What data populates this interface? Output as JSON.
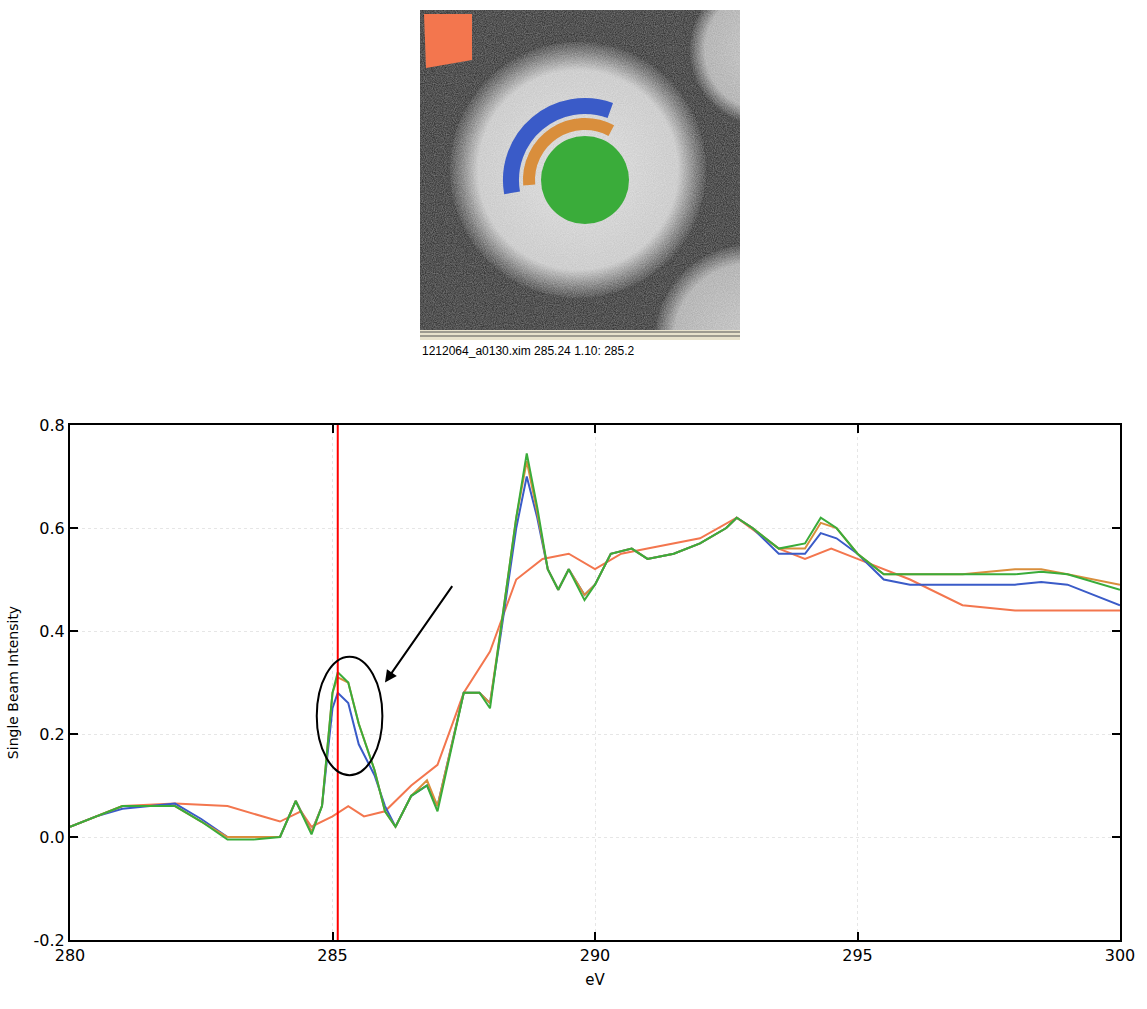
{
  "image": {
    "caption": "1212064_a0130.xim  285.24   1.10: 285.2",
    "regions": [
      {
        "shape": "square",
        "color": "#f3764e"
      },
      {
        "shape": "outer arc",
        "color": "#3a5bc8"
      },
      {
        "shape": "inner arc",
        "color": "#d98e3c"
      },
      {
        "shape": "disc",
        "color": "#3aac3a"
      }
    ]
  },
  "chart_data": {
    "type": "line",
    "x_label": "eV",
    "y_label": "Single Beam Intensity",
    "xlim": [
      280,
      300
    ],
    "xticks": [
      280,
      285,
      290,
      295,
      300
    ],
    "ylim": [
      -0.2,
      0.8
    ],
    "yticks": [
      -0.2,
      {
        "value": 0,
        "label": "0.0"
      },
      0.2,
      0.4,
      0.6,
      0.8
    ],
    "grid": true,
    "series": [
      {
        "color": "#f3764e",
        "x": [
          280,
          281,
          282,
          283,
          284,
          284.4,
          284.6,
          285,
          285.3,
          285.6,
          286,
          286.5,
          287,
          287.5,
          288,
          288.5,
          289,
          289.5,
          290,
          290.5,
          291,
          292,
          292.7,
          293.5,
          294,
          294.5,
          295,
          296,
          297,
          298,
          299,
          300
        ],
        "values": [
          0.02,
          0.06,
          0.065,
          0.06,
          0.03,
          0.05,
          0.02,
          0.04,
          0.06,
          0.04,
          0.05,
          0.1,
          0.14,
          0.28,
          0.36,
          0.5,
          0.54,
          0.55,
          0.52,
          0.55,
          0.56,
          0.58,
          0.62,
          0.56,
          0.54,
          0.56,
          0.54,
          0.5,
          0.45,
          0.44,
          0.44,
          0.44
        ]
      },
      {
        "color": "#3a5bc8",
        "x": [
          280,
          280.5,
          281,
          281.5,
          282,
          282.5,
          283,
          283.5,
          284,
          284.3,
          284.6,
          284.8,
          285,
          285.1,
          285.3,
          285.5,
          285.8,
          286,
          286.2,
          286.5,
          286.8,
          287,
          287.3,
          287.5,
          287.8,
          288,
          288.2,
          288.5,
          288.7,
          288.9,
          289.1,
          289.3,
          289.5,
          289.8,
          290,
          290.3,
          290.7,
          291,
          291.5,
          292,
          292.5,
          292.7,
          293,
          293.5,
          294,
          294.3,
          294.6,
          295,
          295.5,
          296,
          297,
          298,
          298.5,
          299,
          300
        ],
        "values": [
          0.02,
          0.04,
          0.055,
          0.06,
          0.065,
          0.035,
          0.0,
          0.0,
          0.0,
          0.07,
          0.01,
          0.06,
          0.25,
          0.28,
          0.26,
          0.18,
          0.12,
          0.06,
          0.02,
          0.08,
          0.1,
          0.06,
          0.19,
          0.28,
          0.28,
          0.26,
          0.39,
          0.6,
          0.7,
          0.62,
          0.52,
          0.48,
          0.52,
          0.47,
          0.49,
          0.55,
          0.56,
          0.54,
          0.55,
          0.57,
          0.6,
          0.62,
          0.6,
          0.55,
          0.55,
          0.59,
          0.58,
          0.55,
          0.5,
          0.49,
          0.49,
          0.49,
          0.495,
          0.49,
          0.45
        ]
      },
      {
        "color": "#d98e3c",
        "x": [
          280,
          280.5,
          281,
          281.5,
          282,
          282.5,
          283,
          283.5,
          284,
          284.3,
          284.6,
          284.8,
          285,
          285.1,
          285.3,
          285.5,
          285.8,
          286,
          286.2,
          286.5,
          286.8,
          287,
          287.3,
          287.5,
          287.8,
          288,
          288.2,
          288.5,
          288.7,
          288.9,
          289.1,
          289.3,
          289.5,
          289.8,
          290,
          290.3,
          290.7,
          291,
          291.5,
          292,
          292.5,
          292.7,
          293,
          293.5,
          294,
          294.3,
          294.6,
          295,
          295.5,
          296,
          297,
          298,
          298.5,
          299,
          300
        ],
        "values": [
          0.02,
          0.04,
          0.06,
          0.06,
          0.06,
          0.03,
          0.0,
          0.0,
          0.0,
          0.07,
          0.01,
          0.06,
          0.28,
          0.31,
          0.3,
          0.22,
          0.13,
          0.05,
          0.02,
          0.08,
          0.11,
          0.06,
          0.19,
          0.28,
          0.28,
          0.26,
          0.4,
          0.62,
          0.73,
          0.63,
          0.52,
          0.48,
          0.52,
          0.47,
          0.49,
          0.55,
          0.56,
          0.54,
          0.55,
          0.57,
          0.6,
          0.62,
          0.6,
          0.56,
          0.56,
          0.61,
          0.6,
          0.55,
          0.51,
          0.51,
          0.51,
          0.52,
          0.52,
          0.51,
          0.49
        ]
      },
      {
        "color": "#3aac3a",
        "x": [
          280,
          280.5,
          281,
          281.5,
          282,
          282.5,
          283,
          283.5,
          284,
          284.3,
          284.6,
          284.8,
          285,
          285.1,
          285.3,
          285.5,
          285.8,
          286,
          286.2,
          286.5,
          286.8,
          287,
          287.3,
          287.5,
          287.8,
          288,
          288.2,
          288.5,
          288.7,
          288.9,
          289.1,
          289.3,
          289.5,
          289.8,
          290,
          290.3,
          290.7,
          291,
          291.5,
          292,
          292.5,
          292.7,
          293,
          293.5,
          294,
          294.3,
          294.6,
          295,
          295.5,
          296,
          297,
          298,
          298.5,
          299,
          300
        ],
        "values": [
          0.02,
          0.04,
          0.06,
          0.06,
          0.06,
          0.03,
          -0.005,
          -0.005,
          0.0,
          0.07,
          0.005,
          0.06,
          0.28,
          0.32,
          0.3,
          0.22,
          0.13,
          0.05,
          0.02,
          0.08,
          0.1,
          0.05,
          0.19,
          0.28,
          0.28,
          0.25,
          0.4,
          0.62,
          0.745,
          0.64,
          0.52,
          0.48,
          0.52,
          0.46,
          0.49,
          0.55,
          0.56,
          0.54,
          0.55,
          0.57,
          0.6,
          0.62,
          0.6,
          0.56,
          0.57,
          0.62,
          0.6,
          0.55,
          0.51,
          0.51,
          0.51,
          0.51,
          0.515,
          0.51,
          0.48
        ]
      }
    ],
    "marks": {
      "vline": {
        "x": 285.1,
        "color": "#ff0000"
      },
      "ellipse": {
        "x": [
          284.7,
          285.95
        ],
        "y": [
          0.12,
          0.35
        ]
      },
      "arrow": {
        "x": 286.0,
        "y": 0.3,
        "ax": 287.3,
        "ay": 0.49
      }
    }
  }
}
